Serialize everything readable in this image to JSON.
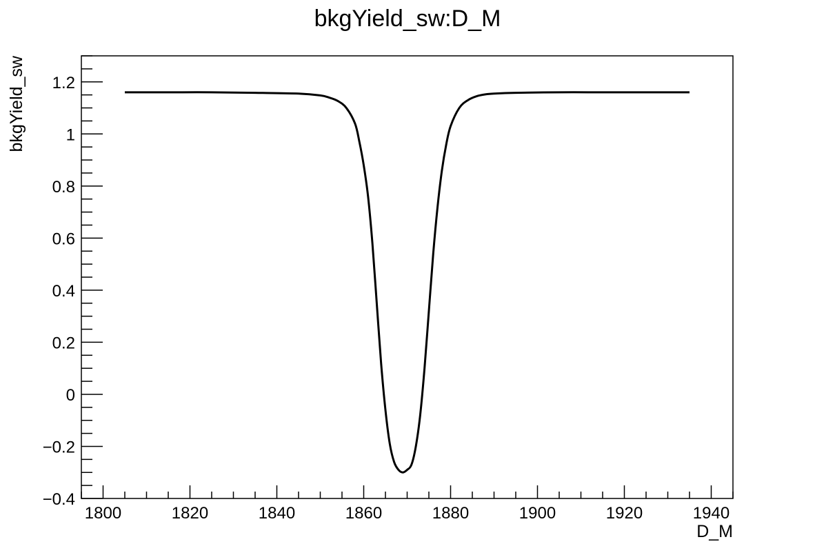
{
  "chart_data": {
    "type": "line",
    "title": "bkgYield_sw:D_M",
    "xlabel": "D_M",
    "ylabel": "bkgYield_sw",
    "xlim": [
      1795,
      1945
    ],
    "ylim": [
      -0.4,
      1.3
    ],
    "x_ticks": [
      1800,
      1820,
      1840,
      1860,
      1880,
      1900,
      1920,
      1940
    ],
    "x_tick_labels": [
      "1800",
      "1820",
      "1840",
      "1860",
      "1880",
      "1900",
      "1920",
      "1940"
    ],
    "y_ticks": [
      -0.4,
      -0.2,
      0,
      0.2,
      0.4,
      0.6,
      0.8,
      1,
      1.2
    ],
    "y_tick_labels": [
      "−0.4",
      "−0.2",
      "0",
      "0.2",
      "0.4",
      "0.6",
      "0.8",
      "1",
      "1.2"
    ],
    "grid": false,
    "legend": "none",
    "series": [
      {
        "x": [
          1805,
          1815,
          1825,
          1835,
          1845,
          1850,
          1852,
          1854,
          1856,
          1858,
          1859,
          1860,
          1861,
          1862,
          1863,
          1864,
          1865,
          1866,
          1867,
          1868,
          1869,
          1870,
          1871,
          1872,
          1873,
          1874,
          1875,
          1876,
          1877,
          1878,
          1879,
          1880,
          1882,
          1884,
          1886,
          1888,
          1890,
          1895,
          1905,
          1915,
          1925,
          1935
        ],
        "y": [
          1.16,
          1.16,
          1.16,
          1.158,
          1.155,
          1.148,
          1.14,
          1.127,
          1.1,
          1.04,
          0.97,
          0.88,
          0.76,
          0.58,
          0.35,
          0.12,
          -0.06,
          -0.19,
          -0.26,
          -0.29,
          -0.3,
          -0.29,
          -0.27,
          -0.2,
          -0.08,
          0.1,
          0.32,
          0.54,
          0.72,
          0.86,
          0.96,
          1.03,
          1.1,
          1.13,
          1.145,
          1.152,
          1.155,
          1.158,
          1.16,
          1.16,
          1.16,
          1.16
        ]
      }
    ]
  }
}
